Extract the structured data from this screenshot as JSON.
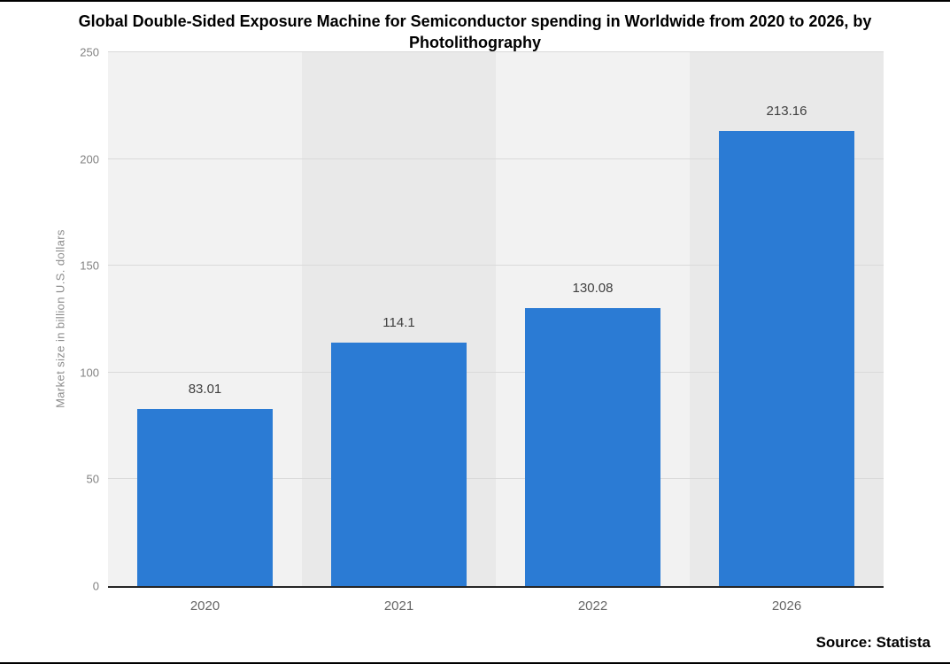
{
  "source": "Source: Statista",
  "chart_data": {
    "type": "bar",
    "title": "Global Double-Sided Exposure Machine for Semiconductor spending in Worldwide from 2020 to 2026, by Photolithography",
    "categories": [
      "2020",
      "2021",
      "2022",
      "2026"
    ],
    "values": [
      83.01,
      114.1,
      130.08,
      213.16
    ],
    "xlabel": "",
    "ylabel": "Market size in billion U.S. dollars",
    "ylim": [
      0,
      250
    ],
    "yticks": [
      0,
      50,
      100,
      150,
      200,
      250
    ],
    "grid": true,
    "legend": false,
    "bar_color": "#2b7bd4",
    "band_colors": [
      "#f2f2f2",
      "#e9e9e9"
    ],
    "axis_color": "#262626",
    "tick_text_color": "#828282"
  }
}
